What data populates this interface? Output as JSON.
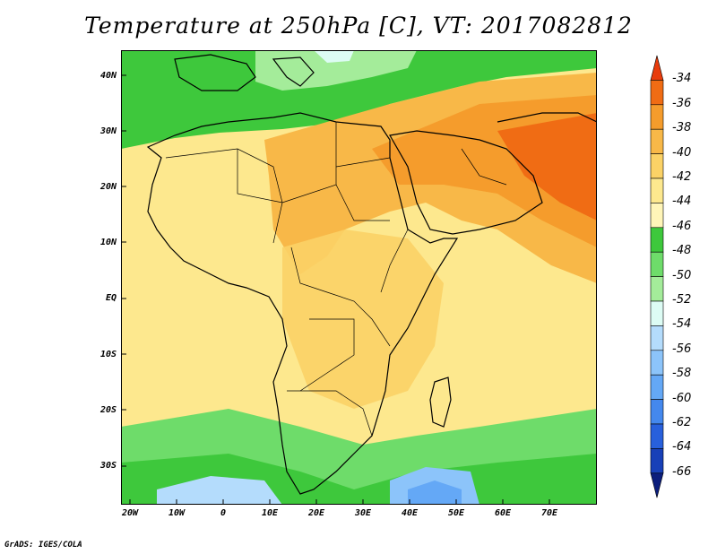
{
  "title": "Temperature at 250hPa [C], VT: 2017082812",
  "credit": "GrADS: IGES/COLA",
  "lat_labels": [
    "40N",
    "30N",
    "20N",
    "10N",
    "EQ",
    "10S",
    "20S",
    "30S"
  ],
  "lon_labels": [
    "20W",
    "10W",
    "0",
    "10E",
    "20E",
    "30E",
    "40E",
    "50E",
    "60E",
    "70E"
  ],
  "colorbar": {
    "labels": [
      "-34",
      "-36",
      "-38",
      "-40",
      "-42",
      "-44",
      "-46",
      "-48",
      "-50",
      "-52",
      "-54",
      "-56",
      "-58",
      "-60",
      "-62",
      "-64",
      "-66"
    ],
    "colors": [
      "#e83c0c",
      "#f06c14",
      "#f59c2c",
      "#f8b848",
      "#fbd266",
      "#fde88e",
      "#fff5b8",
      "#3ec83c",
      "#6edc6a",
      "#a4ec9a",
      "#ddfcf4",
      "#b4dcfc",
      "#8cc4fa",
      "#64a8f6",
      "#4488ee",
      "#2860dc",
      "#1840b8",
      "#0c1e7c"
    ],
    "unit": "C"
  },
  "colors": {
    "ocean_warm": "#fde88e",
    "land_warm": "#fbd266",
    "hot": "#f59c2c",
    "hottest": "#f06c14",
    "cold_band": "#3ec83c",
    "cool_band": "#6edc6a",
    "coldest": "#a4ec9a"
  }
}
